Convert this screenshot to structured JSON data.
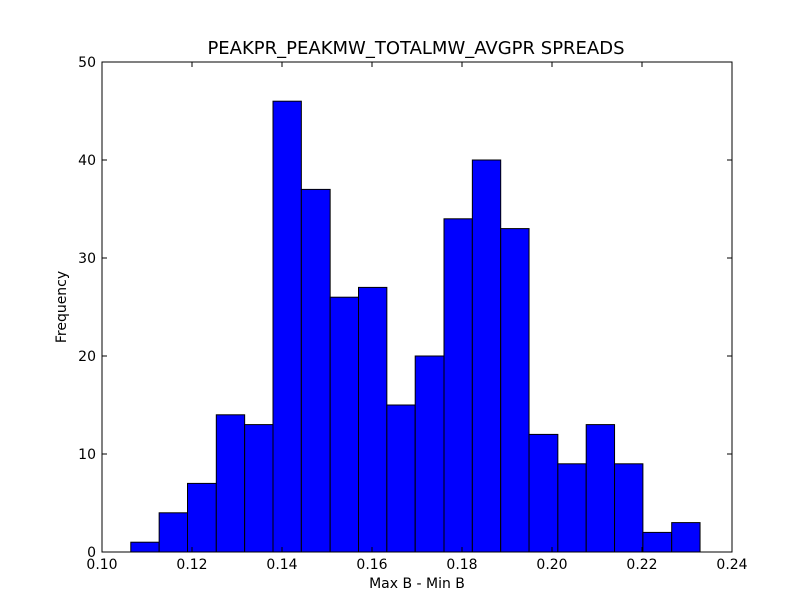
{
  "chart_data": {
    "type": "bar",
    "title": "PEAKPR_PEAKMW_TOTALMW_AVGPR SPREADS",
    "xlabel": "Max B - Min B",
    "ylabel": "Frequency",
    "xlim": [
      0.1,
      0.24
    ],
    "ylim": [
      0,
      50
    ],
    "grid": false,
    "bar_color": "#0000ff",
    "edge_color": "#000000",
    "bin_edges": [
      0.1064,
      0.1127,
      0.119,
      0.1254,
      0.1317,
      0.138,
      0.1443,
      0.1507,
      0.157,
      0.1633,
      0.1696,
      0.176,
      0.1823,
      0.1886,
      0.1949,
      0.2013,
      0.2076,
      0.2139,
      0.2202,
      0.2266,
      0.2329
    ],
    "values": [
      1,
      4,
      7,
      14,
      13,
      46,
      37,
      26,
      27,
      15,
      20,
      34,
      40,
      33,
      12,
      9,
      13,
      9,
      2,
      3
    ],
    "x_ticks": [
      0.1,
      0.12,
      0.14,
      0.16,
      0.18,
      0.2,
      0.22,
      0.24
    ],
    "x_tick_labels": [
      "0.10",
      "0.12",
      "0.14",
      "0.16",
      "0.18",
      "0.20",
      "0.22",
      "0.24"
    ],
    "y_ticks": [
      0,
      10,
      20,
      30,
      40,
      50
    ],
    "y_tick_labels": [
      "0",
      "10",
      "20",
      "30",
      "40",
      "50"
    ]
  }
}
